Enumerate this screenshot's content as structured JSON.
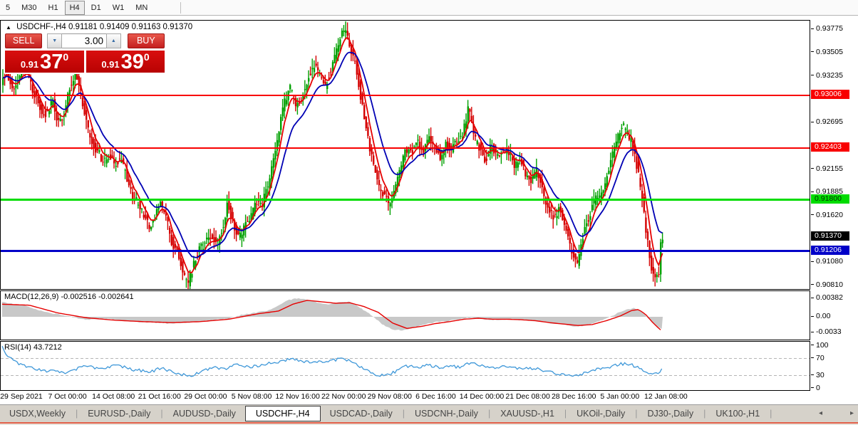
{
  "toolbar": {
    "timeframes": [
      {
        "label": "5",
        "active": false
      },
      {
        "label": "M30",
        "active": false
      },
      {
        "label": "H1",
        "active": false
      },
      {
        "label": "H4",
        "active": true
      },
      {
        "label": "D1",
        "active": false
      },
      {
        "label": "W1",
        "active": false
      },
      {
        "label": "MN",
        "active": false
      }
    ]
  },
  "icons": {
    "collapse_arrow": "▲",
    "volume_down": "▼",
    "volume_up": "▲",
    "tab_scroll_left": "◂",
    "tab_scroll_right": "▸"
  },
  "chart": {
    "symbol_title": "USDCHF-,H4",
    "ohlc_text": "0.91181 0.91409 0.91163 0.91370",
    "trade_panel": {
      "sell_label": "SELL",
      "buy_label": "BUY",
      "volume": "3.00",
      "sell_price_prefix": "0.91",
      "sell_price_big": "37",
      "sell_price_sup": "0",
      "buy_price_prefix": "0.91",
      "buy_price_big": "39",
      "buy_price_sup": "0"
    },
    "axis_ticks": [
      0.93775,
      0.93505,
      0.93235,
      0.92695,
      0.92155,
      0.91885,
      0.9162,
      0.9108,
      0.9081
    ],
    "badges": [
      {
        "price": 0.93006,
        "bg": "#f80000",
        "fg": "#ffffff"
      },
      {
        "price": 0.92403,
        "bg": "#f80000",
        "fg": "#ffffff"
      },
      {
        "price": 0.918,
        "bg": "#00dc00",
        "fg": "#003300"
      },
      {
        "price": 0.9137,
        "bg": "#000000",
        "fg": "#ffffff"
      },
      {
        "price": 0.91206,
        "bg": "#0000c8",
        "fg": "#ffffff"
      }
    ],
    "hlines": [
      {
        "price": 0.93006,
        "color": "#f80000",
        "thickness": 2
      },
      {
        "price": 0.92403,
        "color": "#f80000",
        "thickness": 2
      },
      {
        "price": 0.918,
        "color": "#00dc00",
        "thickness": 3
      },
      {
        "price": 0.91206,
        "color": "#0000c8",
        "thickness": 3
      }
    ],
    "colors": {
      "candle_up": "#00a000",
      "candle_down": "#d40000",
      "ma_fast": "#e60000",
      "ma_slow": "#0000b4",
      "macd_hist": "#c8c8c8",
      "macd_signal": "#e60000",
      "rsi_line": "#3f98d9"
    }
  },
  "chart_data": {
    "type": "candlestick+indicators",
    "symbol": "USDCHF",
    "period": "H4",
    "ohlc_current": {
      "open": 0.91181,
      "high": 0.91409,
      "low": 0.91163,
      "close": 0.9137
    },
    "price_axis_range": [
      0.9081,
      0.93775
    ],
    "price_path": [
      [
        2,
        0.9316
      ],
      [
        10,
        0.933
      ],
      [
        18,
        0.9305
      ],
      [
        26,
        0.9321
      ],
      [
        34,
        0.9336
      ],
      [
        42,
        0.9318
      ],
      [
        50,
        0.93
      ],
      [
        58,
        0.9284
      ],
      [
        66,
        0.928
      ],
      [
        74,
        0.9295
      ],
      [
        82,
        0.927
      ],
      [
        90,
        0.928
      ],
      [
        98,
        0.9308
      ],
      [
        106,
        0.9328
      ],
      [
        114,
        0.9302
      ],
      [
        122,
        0.9268
      ],
      [
        130,
        0.9244
      ],
      [
        138,
        0.9236
      ],
      [
        146,
        0.9222
      ],
      [
        154,
        0.9233
      ],
      [
        162,
        0.9218
      ],
      [
        170,
        0.9229
      ],
      [
        178,
        0.9206
      ],
      [
        186,
        0.9182
      ],
      [
        194,
        0.9178
      ],
      [
        202,
        0.916
      ],
      [
        210,
        0.915
      ],
      [
        218,
        0.9161
      ],
      [
        226,
        0.9178
      ],
      [
        234,
        0.9158
      ],
      [
        242,
        0.913
      ],
      [
        250,
        0.912
      ],
      [
        258,
        0.9092
      ],
      [
        264,
        0.9083
      ],
      [
        272,
        0.9104
      ],
      [
        280,
        0.9124
      ],
      [
        288,
        0.913
      ],
      [
        296,
        0.9139
      ],
      [
        304,
        0.9128
      ],
      [
        312,
        0.9145
      ],
      [
        320,
        0.9178
      ],
      [
        328,
        0.9152
      ],
      [
        336,
        0.9136
      ],
      [
        344,
        0.915
      ],
      [
        352,
        0.916
      ],
      [
        360,
        0.9179
      ],
      [
        368,
        0.9174
      ],
      [
        376,
        0.9196
      ],
      [
        384,
        0.9226
      ],
      [
        392,
        0.9262
      ],
      [
        400,
        0.9294
      ],
      [
        408,
        0.9309
      ],
      [
        416,
        0.929
      ],
      [
        424,
        0.93
      ],
      [
        432,
        0.9319
      ],
      [
        440,
        0.9334
      ],
      [
        448,
        0.9328
      ],
      [
        456,
        0.931
      ],
      [
        464,
        0.9328
      ],
      [
        472,
        0.9352
      ],
      [
        480,
        0.9372
      ],
      [
        484,
        0.9377
      ],
      [
        490,
        0.936
      ],
      [
        498,
        0.9341
      ],
      [
        506,
        0.9302
      ],
      [
        514,
        0.9262
      ],
      [
        522,
        0.923
      ],
      [
        530,
        0.92
      ],
      [
        538,
        0.9186
      ],
      [
        546,
        0.9176
      ],
      [
        554,
        0.9194
      ],
      [
        562,
        0.9214
      ],
      [
        570,
        0.9238
      ],
      [
        578,
        0.9234
      ],
      [
        586,
        0.9248
      ],
      [
        594,
        0.9235
      ],
      [
        602,
        0.9254
      ],
      [
        610,
        0.924
      ],
      [
        618,
        0.9229
      ],
      [
        626,
        0.9243
      ],
      [
        634,
        0.9239
      ],
      [
        642,
        0.9249
      ],
      [
        650,
        0.9258
      ],
      [
        658,
        0.9288
      ],
      [
        666,
        0.9252
      ],
      [
        674,
        0.924
      ],
      [
        682,
        0.9226
      ],
      [
        690,
        0.9244
      ],
      [
        698,
        0.923
      ],
      [
        706,
        0.924
      ],
      [
        714,
        0.9235
      ],
      [
        722,
        0.922
      ],
      [
        730,
        0.9226
      ],
      [
        738,
        0.921
      ],
      [
        746,
        0.92
      ],
      [
        754,
        0.9214
      ],
      [
        762,
        0.919
      ],
      [
        770,
        0.917
      ],
      [
        778,
        0.916
      ],
      [
        786,
        0.917
      ],
      [
        794,
        0.9146
      ],
      [
        802,
        0.912
      ],
      [
        810,
        0.9105
      ],
      [
        818,
        0.9138
      ],
      [
        826,
        0.9158
      ],
      [
        834,
        0.9178
      ],
      [
        842,
        0.9186
      ],
      [
        850,
        0.9198
      ],
      [
        858,
        0.9226
      ],
      [
        866,
        0.9248
      ],
      [
        874,
        0.9268
      ],
      [
        882,
        0.9254
      ],
      [
        890,
        0.9238
      ],
      [
        898,
        0.92
      ],
      [
        906,
        0.9152
      ],
      [
        914,
        0.9102
      ],
      [
        920,
        0.9088
      ],
      [
        925,
        0.9095
      ],
      [
        928,
        0.9137
      ]
    ],
    "macd": {
      "label": "MACD(12,26,9)",
      "values": "-0.002516 -0.002641",
      "axis": [
        0.00382,
        0.0,
        -0.0033
      ],
      "axis_labels": [
        "0.00382",
        "0.00",
        "-0.0033"
      ],
      "main_points": [
        [
          2,
          0.003
        ],
        [
          30,
          0.0024
        ],
        [
          60,
          0.0011
        ],
        [
          90,
          0.0002
        ],
        [
          120,
          -0.0006
        ],
        [
          150,
          -0.0004
        ],
        [
          180,
          -0.0009
        ],
        [
          210,
          -0.0012
        ],
        [
          240,
          -0.0014
        ],
        [
          270,
          -0.0011
        ],
        [
          300,
          -0.0006
        ],
        [
          320,
          -0.0004
        ],
        [
          340,
          0.0005
        ],
        [
          360,
          0.0009
        ],
        [
          380,
          0.0015
        ],
        [
          400,
          0.0033
        ],
        [
          415,
          0.0038
        ],
        [
          430,
          0.0036
        ],
        [
          445,
          0.0029
        ],
        [
          460,
          0.0026
        ],
        [
          475,
          0.003
        ],
        [
          490,
          0.0031
        ],
        [
          505,
          0.0018
        ],
        [
          520,
          0.0004
        ],
        [
          535,
          -0.0015
        ],
        [
          550,
          -0.0026
        ],
        [
          565,
          -0.0028
        ],
        [
          580,
          -0.0022
        ],
        [
          595,
          -0.0016
        ],
        [
          610,
          -0.0011
        ],
        [
          625,
          -0.0009
        ],
        [
          640,
          -0.0006
        ],
        [
          655,
          -0.0002
        ],
        [
          670,
          -0.0003
        ],
        [
          685,
          -0.0006
        ],
        [
          700,
          -0.0006
        ],
        [
          715,
          -0.0005
        ],
        [
          730,
          -0.0007
        ],
        [
          745,
          -0.0009
        ],
        [
          760,
          -0.001
        ],
        [
          775,
          -0.0014
        ],
        [
          790,
          -0.0017
        ],
        [
          805,
          -0.002
        ],
        [
          820,
          -0.0018
        ],
        [
          835,
          -0.0012
        ],
        [
          850,
          -0.0004
        ],
        [
          865,
          0.0007
        ],
        [
          880,
          0.0016
        ],
        [
          890,
          0.0018
        ],
        [
          900,
          0.001
        ],
        [
          910,
          -0.0005
        ],
        [
          920,
          -0.0018
        ],
        [
          929,
          -0.0025
        ]
      ],
      "signal_points": [
        [
          2,
          0.0026
        ],
        [
          40,
          0.0024
        ],
        [
          80,
          0.0008
        ],
        [
          120,
          -0.0002
        ],
        [
          160,
          -0.0007
        ],
        [
          200,
          -0.001
        ],
        [
          240,
          -0.0012
        ],
        [
          280,
          -0.001
        ],
        [
          320,
          -0.0005
        ],
        [
          360,
          0.0006
        ],
        [
          390,
          0.0012
        ],
        [
          410,
          0.0026
        ],
        [
          430,
          0.0034
        ],
        [
          450,
          0.0031
        ],
        [
          470,
          0.0028
        ],
        [
          490,
          0.0029
        ],
        [
          510,
          0.0021
        ],
        [
          530,
          0.0009
        ],
        [
          550,
          -0.0013
        ],
        [
          570,
          -0.0024
        ],
        [
          590,
          -0.002
        ],
        [
          610,
          -0.0014
        ],
        [
          630,
          -0.001
        ],
        [
          650,
          -0.0005
        ],
        [
          670,
          -0.0003
        ],
        [
          690,
          -0.0005
        ],
        [
          710,
          -0.0005
        ],
        [
          730,
          -0.0006
        ],
        [
          750,
          -0.0008
        ],
        [
          770,
          -0.0012
        ],
        [
          790,
          -0.0015
        ],
        [
          810,
          -0.0018
        ],
        [
          830,
          -0.0016
        ],
        [
          850,
          -0.0008
        ],
        [
          870,
          0.0002
        ],
        [
          885,
          0.0013
        ],
        [
          895,
          0.0015
        ],
        [
          905,
          0.0005
        ],
        [
          915,
          -0.0012
        ],
        [
          925,
          -0.0026
        ],
        [
          929,
          -0.003
        ]
      ]
    },
    "rsi": {
      "label": "RSI(14)",
      "value": "43.7212",
      "axis": [
        100,
        70,
        30,
        0
      ],
      "axis_labels": [
        "100",
        "70",
        "30",
        "0"
      ],
      "levels": [
        70,
        30
      ],
      "points": [
        [
          2,
          97
        ],
        [
          10,
          75
        ],
        [
          20,
          62
        ],
        [
          30,
          55
        ],
        [
          45,
          48
        ],
        [
          60,
          42
        ],
        [
          75,
          40
        ],
        [
          90,
          35
        ],
        [
          105,
          45
        ],
        [
          120,
          52
        ],
        [
          135,
          48
        ],
        [
          150,
          50
        ],
        [
          165,
          55
        ],
        [
          180,
          45
        ],
        [
          195,
          42
        ],
        [
          210,
          38
        ],
        [
          225,
          48
        ],
        [
          240,
          40
        ],
        [
          255,
          32
        ],
        [
          270,
          30
        ],
        [
          285,
          42
        ],
        [
          300,
          48
        ],
        [
          315,
          45
        ],
        [
          330,
          55
        ],
        [
          345,
          50
        ],
        [
          360,
          52
        ],
        [
          375,
          58
        ],
        [
          390,
          62
        ],
        [
          405,
          68
        ],
        [
          420,
          65
        ],
        [
          435,
          60
        ],
        [
          450,
          62
        ],
        [
          465,
          65
        ],
        [
          480,
          70
        ],
        [
          495,
          60
        ],
        [
          510,
          45
        ],
        [
          525,
          32
        ],
        [
          540,
          30
        ],
        [
          555,
          40
        ],
        [
          570,
          52
        ],
        [
          585,
          50
        ],
        [
          600,
          55
        ],
        [
          615,
          48
        ],
        [
          630,
          52
        ],
        [
          645,
          50
        ],
        [
          660,
          60
        ],
        [
          675,
          52
        ],
        [
          690,
          48
        ],
        [
          705,
          52
        ],
        [
          720,
          48
        ],
        [
          735,
          45
        ],
        [
          750,
          48
        ],
        [
          765,
          40
        ],
        [
          780,
          35
        ],
        [
          795,
          32
        ],
        [
          810,
          28
        ],
        [
          825,
          40
        ],
        [
          840,
          45
        ],
        [
          855,
          50
        ],
        [
          870,
          58
        ],
        [
          885,
          55
        ],
        [
          900,
          45
        ],
        [
          915,
          30
        ],
        [
          928,
          44
        ]
      ]
    },
    "x_labels": [
      "29 Sep 2021",
      "7 Oct 00:00",
      "14 Oct 08:00",
      "21 Oct 16:00",
      "29 Oct 00:00",
      "5 Nov 08:00",
      "12 Nov 16:00",
      "22 Nov 00:00",
      "29 Nov 08:00",
      "6 Dec 16:00",
      "14 Dec 00:00",
      "21 Dec 08:00",
      "28 Dec 16:00",
      "5 Jan 00:00",
      "12 Jan 08:00"
    ]
  },
  "tabs": {
    "active_index": 3,
    "items": [
      "USDX,Weekly",
      "EURUSD-,Daily",
      "AUDUSD-,Daily",
      "USDCHF-,H4",
      "USDCAD-,Daily",
      "USDCNH-,Daily",
      "XAUUSD-,H1",
      "UKOil-,Daily",
      "DJ30-,Daily",
      "UK100-,H1"
    ]
  }
}
